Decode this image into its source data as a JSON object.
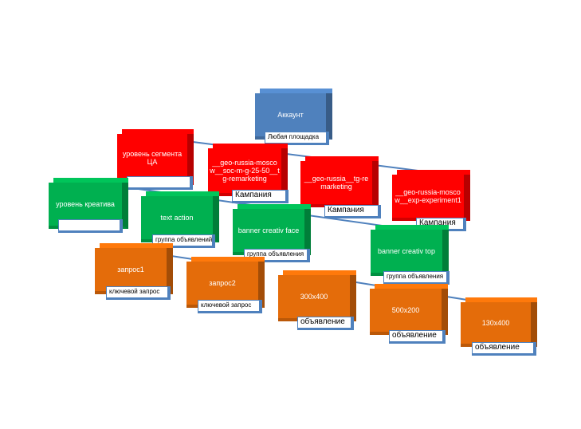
{
  "colors": {
    "account": "#4f81bd",
    "campaign": "#ff0000",
    "adgroup": "#00b050",
    "keyword_ad": "#e46c0a",
    "connector": "#4f81bd"
  },
  "diagram": {
    "root": {
      "title": "Аккаунт",
      "label": "Любая площадка"
    },
    "campaigns": [
      {
        "title": "уровень сегмента ЦА",
        "label": ""
      },
      {
        "title": "__geo-russia-moscow__soc-m-g-25-50__tg-remarketing",
        "label": "Кампания"
      },
      {
        "title": "__geo-russia__tg-remarketing",
        "label": "Кампания"
      },
      {
        "title": "__geo-russia-moscow__exp-experiment1",
        "label": "Кампания"
      }
    ],
    "adgroups": [
      {
        "title": "уровень креатива",
        "label": ""
      },
      {
        "title": "text action",
        "label": "группа объявлений"
      },
      {
        "title": "banner creativ face",
        "label": "группа объявления"
      },
      {
        "title": "banner creativ top",
        "label": "группа объявления"
      }
    ],
    "leaves": [
      {
        "title": "запрос1",
        "label": "ключевой запрос"
      },
      {
        "title": "запрос2",
        "label": "ключевой запрос"
      },
      {
        "title": "300x400",
        "label": "объявление"
      },
      {
        "title": "500x200",
        "label": "объявление"
      },
      {
        "title": "130x400",
        "label": "объявление"
      }
    ]
  }
}
